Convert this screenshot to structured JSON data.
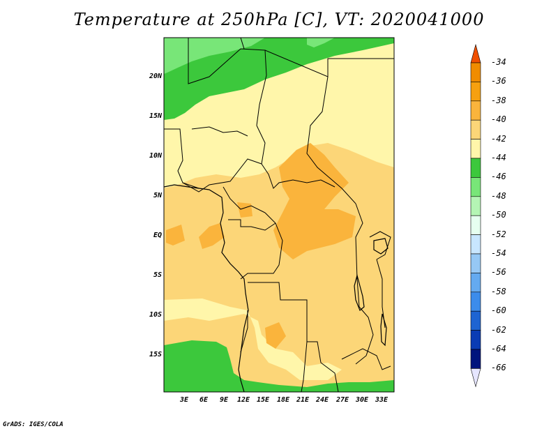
{
  "title": "Temperature at 250hPa [C], VT: 2020041000",
  "credit": "GrADS: IGES/COLA",
  "map": {
    "lat_labels": [
      "20N",
      "15N",
      "10N",
      "5N",
      "EQ",
      "5S",
      "10S",
      "15S"
    ],
    "lon_labels": [
      "3E",
      "6E",
      "9E",
      "12E",
      "15E",
      "18E",
      "21E",
      "24E",
      "27E",
      "30E",
      "33E"
    ],
    "colors": {
      "band_m36": "#f08c00",
      "band_m38": "#fab43c",
      "band_m40": "#fcd678",
      "band_m42": "#fff6aa",
      "band_m44": "#3cc83c",
      "band_m46": "#78e678",
      "border": "#000000"
    }
  },
  "colorbar": {
    "labels": [
      "-34",
      "-36",
      "-38",
      "-40",
      "-42",
      "-44",
      "-46",
      "-48",
      "-50",
      "-52",
      "-54",
      "-56",
      "-58",
      "-60",
      "-62",
      "-64",
      "-66"
    ],
    "colors": [
      "#f05000",
      "#f08c00",
      "#f6a010",
      "#fab43c",
      "#fcd678",
      "#fff6aa",
      "#3cc83c",
      "#78e678",
      "#b4f5b4",
      "#e6fff0",
      "#c8e6ff",
      "#96c8f5",
      "#64aaf0",
      "#3c8ceb",
      "#1e64d2",
      "#0a3cb4",
      "#00147d",
      "#e6e6ff"
    ]
  }
}
